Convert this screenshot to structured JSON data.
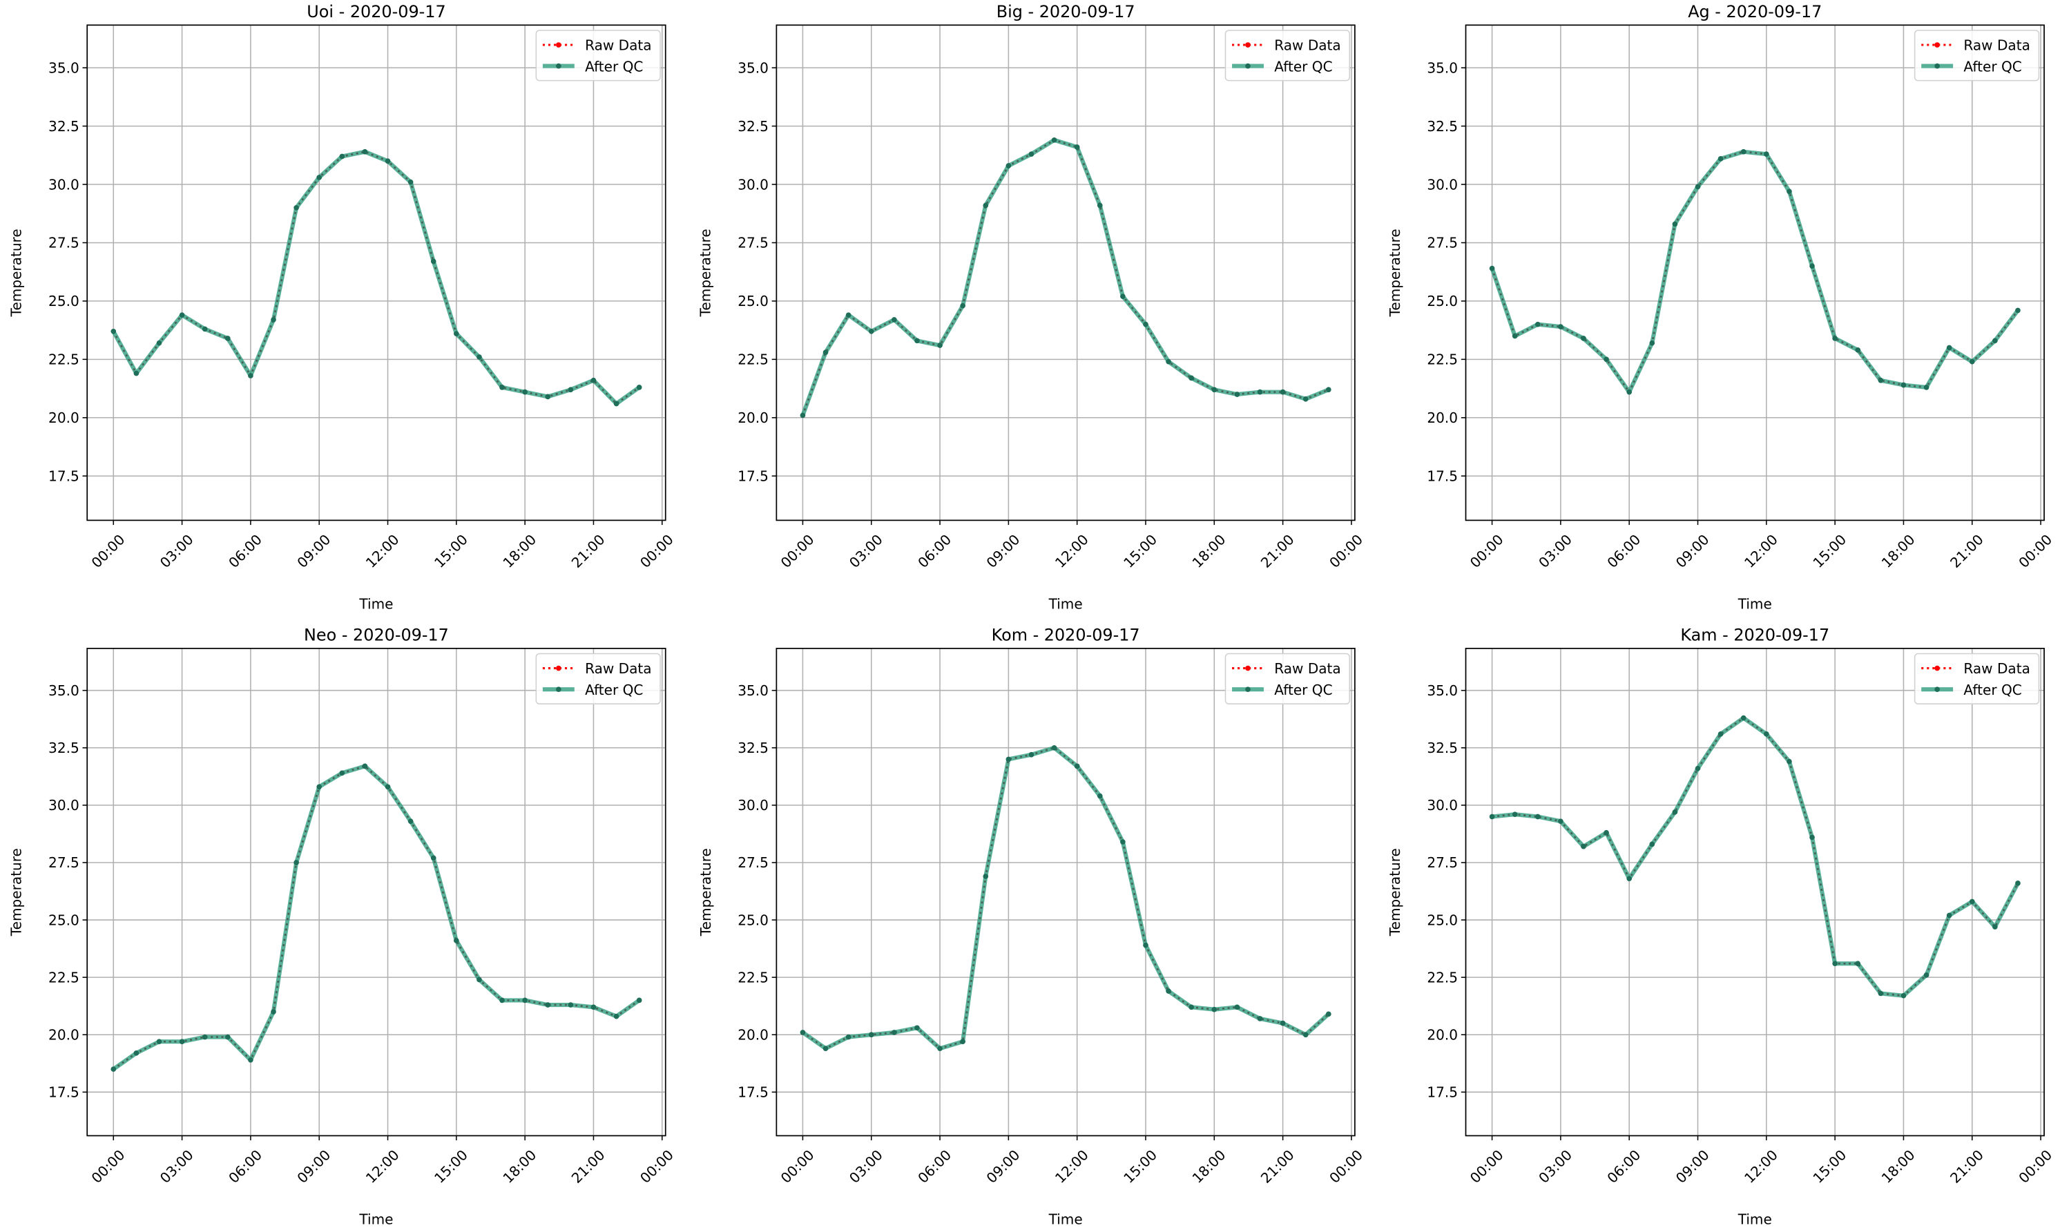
{
  "chart_data": [
    {
      "type": "line",
      "title": "Uoi - 2020-09-17",
      "xlabel": "Time",
      "ylabel": "Temperature",
      "x_hours": [
        0,
        1,
        2,
        3,
        4,
        5,
        6,
        7,
        8,
        9,
        10,
        11,
        12,
        13,
        14,
        15,
        16,
        17,
        18,
        19,
        20,
        21,
        22,
        23
      ],
      "series": [
        {
          "name": "Raw Data",
          "values": [
            23.7,
            21.9,
            23.2,
            24.4,
            23.8,
            23.4,
            21.8,
            24.2,
            29.0,
            30.3,
            31.2,
            31.4,
            31.0,
            30.1,
            26.7,
            23.6,
            22.6,
            21.3,
            21.1,
            20.9,
            21.2,
            21.6,
            20.6,
            21.3
          ]
        },
        {
          "name": "After QC",
          "values": [
            23.7,
            21.9,
            23.2,
            24.4,
            23.8,
            23.4,
            21.8,
            24.2,
            29.0,
            30.3,
            31.2,
            31.4,
            31.0,
            30.1,
            26.7,
            23.6,
            22.6,
            21.3,
            21.1,
            20.9,
            21.2,
            21.6,
            20.6,
            21.3
          ]
        }
      ]
    },
    {
      "type": "line",
      "title": "Big - 2020-09-17",
      "xlabel": "Time",
      "ylabel": "Temperature",
      "x_hours": [
        0,
        1,
        2,
        3,
        4,
        5,
        6,
        7,
        8,
        9,
        10,
        11,
        12,
        13,
        14,
        15,
        16,
        17,
        18,
        19,
        20,
        21,
        22,
        23
      ],
      "series": [
        {
          "name": "Raw Data",
          "values": [
            20.1,
            22.8,
            24.4,
            23.7,
            24.2,
            23.3,
            23.1,
            24.8,
            29.1,
            30.8,
            31.3,
            31.9,
            31.6,
            29.1,
            25.2,
            24.0,
            22.4,
            21.7,
            21.2,
            21.0,
            21.1,
            21.1,
            20.8,
            21.2
          ]
        },
        {
          "name": "After QC",
          "values": [
            20.1,
            22.8,
            24.4,
            23.7,
            24.2,
            23.3,
            23.1,
            24.8,
            29.1,
            30.8,
            31.3,
            31.9,
            31.6,
            29.1,
            25.2,
            24.0,
            22.4,
            21.7,
            21.2,
            21.0,
            21.1,
            21.1,
            20.8,
            21.2
          ]
        }
      ]
    },
    {
      "type": "line",
      "title": "Ag - 2020-09-17",
      "xlabel": "Time",
      "ylabel": "Temperature",
      "x_hours": [
        0,
        1,
        2,
        3,
        4,
        5,
        6,
        7,
        8,
        9,
        10,
        11,
        12,
        13,
        14,
        15,
        16,
        17,
        18,
        19,
        20,
        21,
        22,
        23
      ],
      "series": [
        {
          "name": "Raw Data",
          "values": [
            26.4,
            23.5,
            24.0,
            23.9,
            23.4,
            22.5,
            21.1,
            23.2,
            28.3,
            29.9,
            31.1,
            31.4,
            31.3,
            29.7,
            26.5,
            23.4,
            22.9,
            21.6,
            21.4,
            21.3,
            23.0,
            22.4,
            23.3,
            24.6
          ]
        },
        {
          "name": "After QC",
          "values": [
            26.4,
            23.5,
            24.0,
            23.9,
            23.4,
            22.5,
            21.1,
            23.2,
            28.3,
            29.9,
            31.1,
            31.4,
            31.3,
            29.7,
            26.5,
            23.4,
            22.9,
            21.6,
            21.4,
            21.3,
            23.0,
            22.4,
            23.3,
            24.6
          ]
        }
      ]
    },
    {
      "type": "line",
      "title": "Neo - 2020-09-17",
      "xlabel": "Time",
      "ylabel": "Temperature",
      "x_hours": [
        0,
        1,
        2,
        3,
        4,
        5,
        6,
        7,
        8,
        9,
        10,
        11,
        12,
        13,
        14,
        15,
        16,
        17,
        18,
        19,
        20,
        21,
        22,
        23
      ],
      "series": [
        {
          "name": "Raw Data",
          "values": [
            18.5,
            19.2,
            19.7,
            19.7,
            19.9,
            19.9,
            18.9,
            21.0,
            27.5,
            30.8,
            31.4,
            31.7,
            30.8,
            29.3,
            27.7,
            24.1,
            22.4,
            21.5,
            21.5,
            21.3,
            21.3,
            21.2,
            20.8,
            21.5
          ]
        },
        {
          "name": "After QC",
          "values": [
            18.5,
            19.2,
            19.7,
            19.7,
            19.9,
            19.9,
            18.9,
            21.0,
            27.5,
            30.8,
            31.4,
            31.7,
            30.8,
            29.3,
            27.7,
            24.1,
            22.4,
            21.5,
            21.5,
            21.3,
            21.3,
            21.2,
            20.8,
            21.5
          ]
        }
      ]
    },
    {
      "type": "line",
      "title": "Kom - 2020-09-17",
      "xlabel": "Time",
      "ylabel": "Temperature",
      "x_hours": [
        0,
        1,
        2,
        3,
        4,
        5,
        6,
        7,
        8,
        9,
        10,
        11,
        12,
        13,
        14,
        15,
        16,
        17,
        18,
        19,
        20,
        21,
        22,
        23
      ],
      "series": [
        {
          "name": "Raw Data",
          "values": [
            20.1,
            19.4,
            19.9,
            20.0,
            20.1,
            20.3,
            19.4,
            19.7,
            26.9,
            32.0,
            32.2,
            32.5,
            31.7,
            30.4,
            28.4,
            23.9,
            21.9,
            21.2,
            21.1,
            21.2,
            20.7,
            20.5,
            20.0,
            20.9
          ]
        },
        {
          "name": "After QC",
          "values": [
            20.1,
            19.4,
            19.9,
            20.0,
            20.1,
            20.3,
            19.4,
            19.7,
            26.9,
            32.0,
            32.2,
            32.5,
            31.7,
            30.4,
            28.4,
            23.9,
            21.9,
            21.2,
            21.1,
            21.2,
            20.7,
            20.5,
            20.0,
            20.9
          ]
        }
      ]
    },
    {
      "type": "line",
      "title": "Kam - 2020-09-17",
      "xlabel": "Time",
      "ylabel": "Temperature",
      "x_hours": [
        0,
        1,
        2,
        3,
        4,
        5,
        6,
        7,
        8,
        9,
        10,
        11,
        12,
        13,
        14,
        15,
        16,
        17,
        18,
        19,
        20,
        21,
        22,
        23
      ],
      "series": [
        {
          "name": "Raw Data",
          "values": [
            29.5,
            29.6,
            29.5,
            29.3,
            28.2,
            28.8,
            26.8,
            28.3,
            29.7,
            31.6,
            33.1,
            33.8,
            33.1,
            31.9,
            28.6,
            23.1,
            23.1,
            21.8,
            21.7,
            22.6,
            25.2,
            25.8,
            24.7,
            26.6
          ]
        },
        {
          "name": "After QC",
          "values": [
            29.5,
            29.6,
            29.5,
            29.3,
            28.2,
            28.8,
            26.8,
            28.3,
            29.7,
            31.6,
            33.1,
            33.8,
            33.1,
            31.9,
            28.6,
            23.1,
            23.1,
            21.8,
            21.7,
            22.6,
            25.2,
            25.8,
            24.7,
            26.6
          ]
        }
      ]
    }
  ],
  "shared_axes": {
    "xlim_hours": [
      -1.15,
      24.15
    ],
    "ylim": [
      15.6,
      36.83
    ],
    "x_tick_hours": [
      0,
      3,
      6,
      9,
      12,
      15,
      18,
      21,
      24
    ],
    "x_tick_labels": [
      "00:00",
      "03:00",
      "06:00",
      "09:00",
      "12:00",
      "15:00",
      "18:00",
      "21:00",
      "00:00"
    ],
    "y_ticks": [
      17.5,
      20.0,
      22.5,
      25.0,
      27.5,
      30.0,
      32.5,
      35.0
    ],
    "y_tick_labels": [
      "17.5",
      "20.0",
      "22.5",
      "25.0",
      "27.5",
      "30.0",
      "32.5",
      "35.0"
    ],
    "grid": true,
    "legend_placement": "top-right",
    "legend": [
      "Raw Data",
      "After QC"
    ]
  },
  "colors": {
    "raw": "#ff0000",
    "qc_line": "#2f9d80",
    "qc_marker": "#1f6e5a",
    "grid": "#b0b0b0"
  }
}
